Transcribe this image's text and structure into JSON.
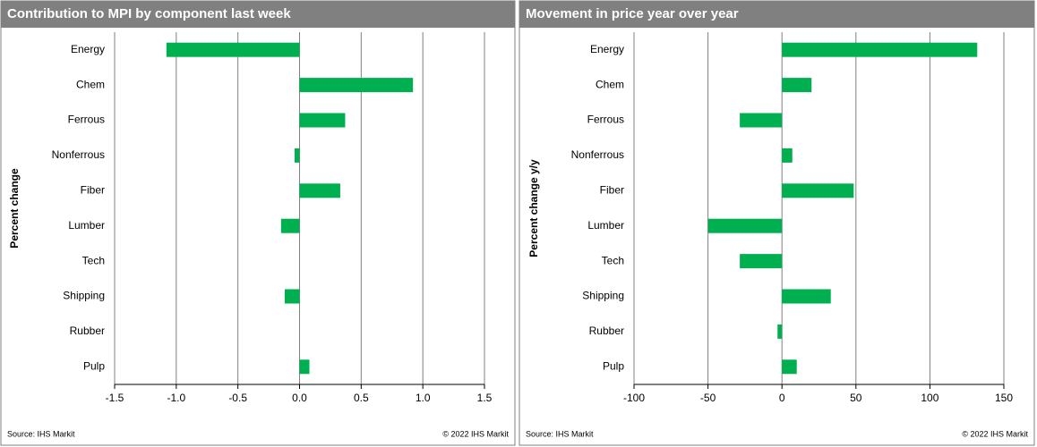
{
  "chart_data": [
    {
      "type": "bar",
      "orientation": "horizontal",
      "title": "Contribution to MPI by component last week",
      "y_label": "Percent change",
      "source": "Source:  IHS Markit",
      "copyright": "© 2022  IHS Markit",
      "categories": [
        "Energy",
        "Chem",
        "Ferrous",
        "Nonferrous",
        "Fiber",
        "Lumber",
        "Tech",
        "Shipping",
        "Rubber",
        "Pulp"
      ],
      "values": [
        -1.08,
        0.92,
        0.37,
        -0.04,
        0.33,
        -0.15,
        0,
        -0.12,
        0,
        0.08
      ],
      "color": "#00b050",
      "xlim": [
        -1.5,
        1.5
      ],
      "xticks": [
        -1.5,
        {
          "value": -1,
          "label": "-1.0"
        },
        -0.5,
        {
          "value": 0,
          "label": "0.0"
        },
        0.5,
        {
          "value": 1,
          "label": "1.0"
        },
        1.5
      ],
      "grid": true
    },
    {
      "type": "bar",
      "orientation": "horizontal",
      "title": "Movement in price year over year",
      "y_label": "Percent change y/y",
      "source": "Source:  IHS Markit",
      "copyright": "© 2022  IHS Markit",
      "categories": [
        "Energy",
        "Chem",
        "Ferrous",
        "Nonferrous",
        "Fiber",
        "Lumber",
        "Tech",
        "Shipping",
        "Rubber",
        "Pulp"
      ],
      "values": [
        132,
        20,
        -28.5,
        7,
        48.5,
        -50,
        -28.5,
        33,
        -3,
        10
      ],
      "color": "#00b050",
      "xlim": [
        -100,
        150
      ],
      "xticks": [
        -100,
        -50,
        0,
        50,
        100,
        150
      ],
      "grid": true
    }
  ]
}
